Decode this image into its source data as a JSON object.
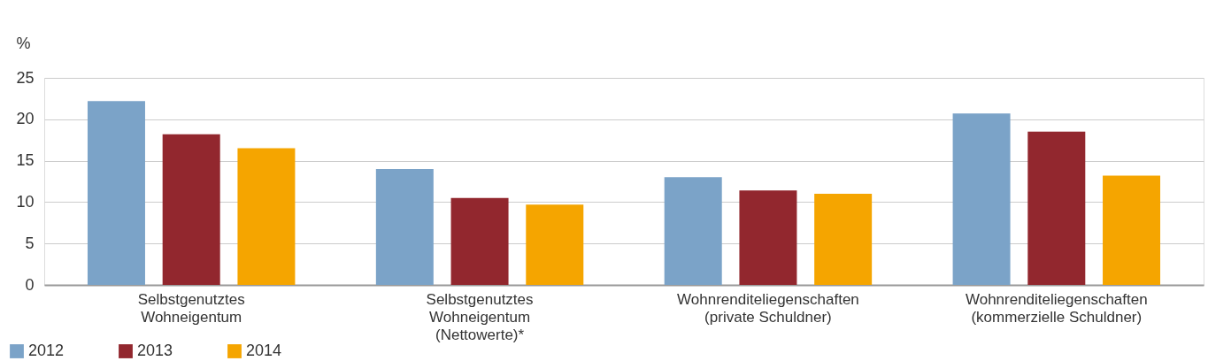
{
  "chart_data": {
    "type": "bar",
    "ylabel": "%",
    "categories": [
      "Selbstgenutztes\nWohneigentum",
      "Selbstgenutztes\nWohneigentum\n(Nettowerte)*",
      "Wohnrenditeliegenschaften\n(private Schuldner)",
      "Wohnrenditeliegenschaften\n(kommerzielle Schuldner)"
    ],
    "series": [
      {
        "name": "2012",
        "color": "#7ba3c8",
        "values": [
          22.2,
          14.0,
          13.0,
          20.7
        ]
      },
      {
        "name": "2013",
        "color": "#92272e",
        "values": [
          18.2,
          10.5,
          11.4,
          18.5
        ]
      },
      {
        "name": "2014",
        "color": "#f5a500",
        "values": [
          16.5,
          9.7,
          11.0,
          13.2
        ]
      }
    ],
    "ylim": [
      0,
      25
    ],
    "yticks": [
      0,
      5,
      10,
      15,
      20,
      25
    ],
    "grid": "y",
    "legend": "bottom left"
  }
}
